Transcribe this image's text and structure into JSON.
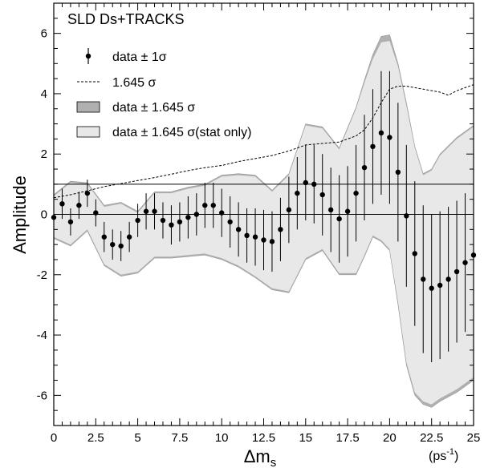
{
  "chart_data": {
    "type": "scatter",
    "title": "SLD Ds+TRACKS",
    "xlabel": "Δm",
    "xlabel_sub": "s",
    "xunit": "(ps",
    "xunit_sup": "-1",
    "xunit_close": ")",
    "ylabel": "Amplitude",
    "xlim": [
      0,
      25
    ],
    "ylim": [
      -7,
      7
    ],
    "x_ticks": [
      0,
      2.5,
      5,
      7.5,
      10,
      12.5,
      15,
      17.5,
      20,
      22.5,
      25
    ],
    "x_tick_labels": [
      "0",
      "2.5",
      "5",
      "7.5",
      "10",
      "12.5",
      "15",
      "17.5",
      "20",
      "22.5",
      "25"
    ],
    "y_ticks": [
      -6,
      -4,
      -2,
      0,
      2,
      4,
      6
    ],
    "y_tick_labels": [
      "-6",
      "-4",
      "-2",
      "0",
      "2",
      "4",
      "6"
    ],
    "x_minor_step": 0.5,
    "y_minor_step": 0.5,
    "grid": false,
    "legend_position": "top-left",
    "legend": {
      "data_1sigma": "data ± 1σ",
      "sens": "1.645 σ",
      "band_dark": "data ± 1.645 σ",
      "band_light": "data ± 1.645 σ(stat only)"
    },
    "reference_lines": [
      0,
      1
    ],
    "colors": {
      "band_dark": "#b0b0b0",
      "band_light": "#e8e8e8",
      "band_edge": "#999999"
    },
    "series": [
      {
        "kind": "points",
        "x": [
          0,
          0.5,
          1,
          1.5,
          2,
          2.5,
          3,
          3.5,
          4,
          4.5,
          5,
          5.5,
          6,
          6.5,
          7,
          7.5,
          8,
          8.5,
          9,
          9.5,
          10,
          10.5,
          11,
          11.5,
          12,
          12.5,
          13,
          13.5,
          14,
          14.5,
          15,
          15.5,
          16,
          16.5,
          17,
          17.5,
          18,
          18.5,
          19,
          19.5,
          20,
          20.5,
          21,
          21.5,
          22,
          22.5,
          23,
          23.5,
          24,
          24.5,
          25
        ],
        "y": [
          -0.1,
          0.35,
          -0.25,
          0.3,
          0.7,
          0.05,
          -0.75,
          -1.0,
          -1.05,
          -0.75,
          -0.2,
          0.1,
          0.1,
          -0.2,
          -0.35,
          -0.25,
          -0.1,
          0.0,
          0.3,
          0.3,
          0.05,
          -0.25,
          -0.5,
          -0.7,
          -0.75,
          -0.85,
          -0.9,
          -0.5,
          0.15,
          0.7,
          1.05,
          1.0,
          0.65,
          0.15,
          -0.15,
          0.1,
          0.7,
          1.55,
          2.25,
          2.7,
          2.55,
          1.4,
          -0.05,
          -1.3,
          -2.15,
          -2.45,
          -2.35,
          -2.15,
          -1.9,
          -1.6,
          -1.35
        ],
        "err": [
          0.45,
          0.5,
          0.45,
          0.45,
          0.45,
          0.45,
          0.5,
          0.5,
          0.5,
          0.5,
          0.55,
          0.6,
          0.6,
          0.6,
          0.65,
          0.65,
          0.7,
          0.7,
          0.75,
          0.75,
          0.8,
          0.85,
          0.9,
          0.9,
          0.95,
          1.0,
          1.0,
          1.05,
          1.1,
          1.2,
          1.25,
          1.3,
          1.35,
          1.4,
          1.45,
          1.5,
          1.6,
          1.75,
          1.9,
          2.05,
          2.2,
          2.3,
          2.35,
          2.4,
          2.45,
          2.45,
          2.45,
          2.4,
          2.35,
          2.3,
          2.3
        ]
      },
      {
        "kind": "dashed_line",
        "x": [
          0,
          1,
          2,
          3,
          4,
          5,
          6,
          7,
          8,
          9,
          10,
          11,
          12,
          13,
          14,
          15,
          16,
          17,
          17.5,
          18,
          18.5,
          19,
          19.5,
          20,
          20.5,
          21,
          22,
          23,
          23.5,
          24,
          24.5,
          25
        ],
        "y": [
          0.55,
          0.65,
          0.78,
          0.92,
          1.02,
          1.12,
          1.22,
          1.33,
          1.45,
          1.55,
          1.62,
          1.75,
          1.85,
          1.95,
          2.1,
          2.3,
          2.35,
          2.4,
          2.5,
          2.6,
          2.8,
          3.2,
          3.7,
          4.15,
          4.25,
          4.25,
          4.15,
          4.05,
          3.95,
          4.1,
          4.2,
          4.3
        ]
      },
      {
        "kind": "band_dark",
        "x": [
          0,
          1,
          2,
          3,
          4,
          5,
          6,
          7,
          8,
          9,
          10,
          11,
          12,
          13,
          14,
          15,
          16,
          17,
          18,
          18.5,
          19,
          19.5,
          20,
          20.5,
          21,
          21.5,
          22,
          22.5,
          23,
          24,
          25
        ],
        "y_low": [
          -0.8,
          -1.05,
          -0.55,
          -1.7,
          -2.05,
          -1.95,
          -1.45,
          -1.45,
          -1.4,
          -1.35,
          -1.5,
          -1.75,
          -2.1,
          -2.5,
          -2.6,
          -1.5,
          -1.2,
          -2.0,
          -2.0,
          -1.4,
          -0.75,
          -0.9,
          -1.2,
          -3.0,
          -5.0,
          -6.0,
          -6.3,
          -6.4,
          -6.2,
          -5.9,
          -5.5
        ],
        "y_high": [
          0.65,
          1.1,
          1.05,
          0.3,
          0.4,
          0.1,
          0.75,
          0.75,
          0.9,
          1.0,
          1.3,
          1.35,
          1.3,
          0.8,
          1.35,
          3.0,
          2.9,
          2.2,
          3.55,
          4.45,
          5.3,
          5.9,
          5.95,
          5.0,
          3.7,
          2.25,
          1.35,
          1.5,
          2.0,
          2.55,
          2.95
        ]
      },
      {
        "kind": "band_light",
        "x": [
          0,
          1,
          2,
          3,
          4,
          5,
          6,
          7,
          8,
          9,
          10,
          11,
          12,
          13,
          14,
          15,
          16,
          17,
          18,
          18.5,
          19,
          19.5,
          20,
          20.5,
          21,
          21.5,
          22,
          22.5,
          23,
          24,
          25
        ],
        "y_low": [
          -0.75,
          -1.0,
          -0.5,
          -1.65,
          -2.0,
          -1.9,
          -1.4,
          -1.4,
          -1.35,
          -1.3,
          -1.45,
          -1.7,
          -2.05,
          -2.45,
          -2.55,
          -1.45,
          -1.15,
          -1.95,
          -1.95,
          -1.35,
          -0.7,
          -0.85,
          -1.15,
          -2.9,
          -4.9,
          -5.9,
          -6.2,
          -6.3,
          -6.1,
          -5.8,
          -5.4
        ],
        "y_high": [
          0.6,
          1.05,
          1.0,
          0.25,
          0.35,
          0.05,
          0.7,
          0.7,
          0.85,
          0.95,
          1.25,
          1.3,
          1.25,
          0.75,
          1.3,
          2.95,
          2.85,
          2.15,
          3.5,
          4.35,
          5.15,
          5.7,
          5.75,
          4.9,
          3.6,
          2.2,
          1.3,
          1.45,
          1.95,
          2.5,
          2.9
        ]
      }
    ]
  }
}
